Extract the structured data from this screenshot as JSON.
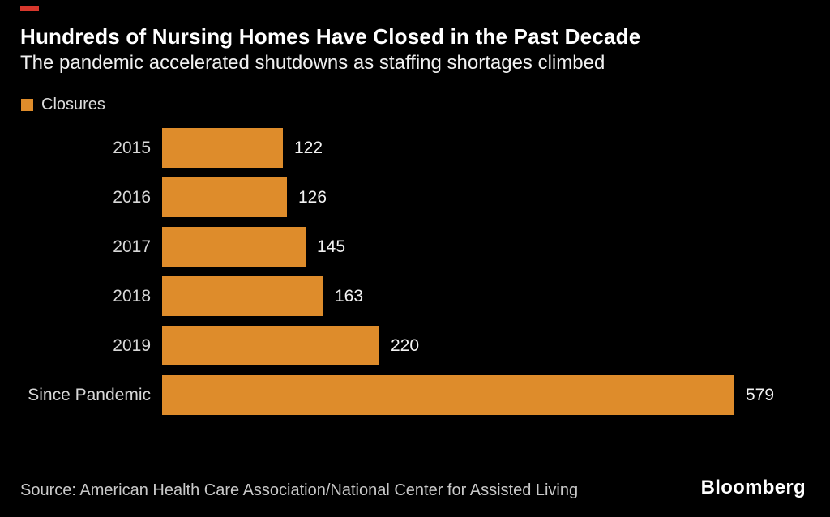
{
  "accent": {
    "red_mark_color": "#d7372c"
  },
  "header": {
    "title": "Hundreds of Nursing Homes Have Closed in the Past Decade",
    "subtitle": "The pandemic accelerated shutdowns as staffing shortages climbed"
  },
  "legend": {
    "label": "Closures",
    "color": "#de8c2b"
  },
  "chart_data": {
    "type": "bar",
    "orientation": "horizontal",
    "title": "Hundreds of Nursing Homes Have Closed in the Past Decade",
    "subtitle": "The pandemic accelerated shutdowns as staffing shortages climbed",
    "series_name": "Closures",
    "categories": [
      "2015",
      "2016",
      "2017",
      "2018",
      "2019",
      "Since Pandemic"
    ],
    "values": [
      122,
      126,
      145,
      163,
      220,
      579
    ],
    "bar_color": "#de8c2b",
    "value_labels_shown": true,
    "xlim": [
      0,
      600
    ],
    "grid": false,
    "legend_position": "top-left"
  },
  "footer": {
    "source": "Source: American Health Care Association/National Center for Assisted Living",
    "brand": "Bloomberg"
  }
}
